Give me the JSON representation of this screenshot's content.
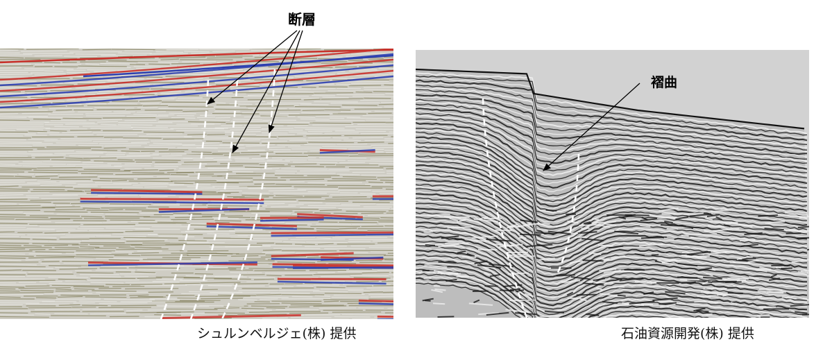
{
  "left_figure": {
    "label": "断層",
    "credit": "シュルンベルジェ(株) 提供",
    "palette": {
      "background": "#cfcdc4",
      "red": "#c8302a",
      "blue": "#2c3fb0",
      "olive": "#6d6a3e",
      "white": "#f2f2ee"
    }
  },
  "right_figure": {
    "label": "褶曲",
    "credit": "石油資源開発(株) 提供",
    "palette": {
      "sky": "#d2d2d2",
      "dark": "#1a1a1a",
      "light": "#f0f0f0"
    }
  }
}
